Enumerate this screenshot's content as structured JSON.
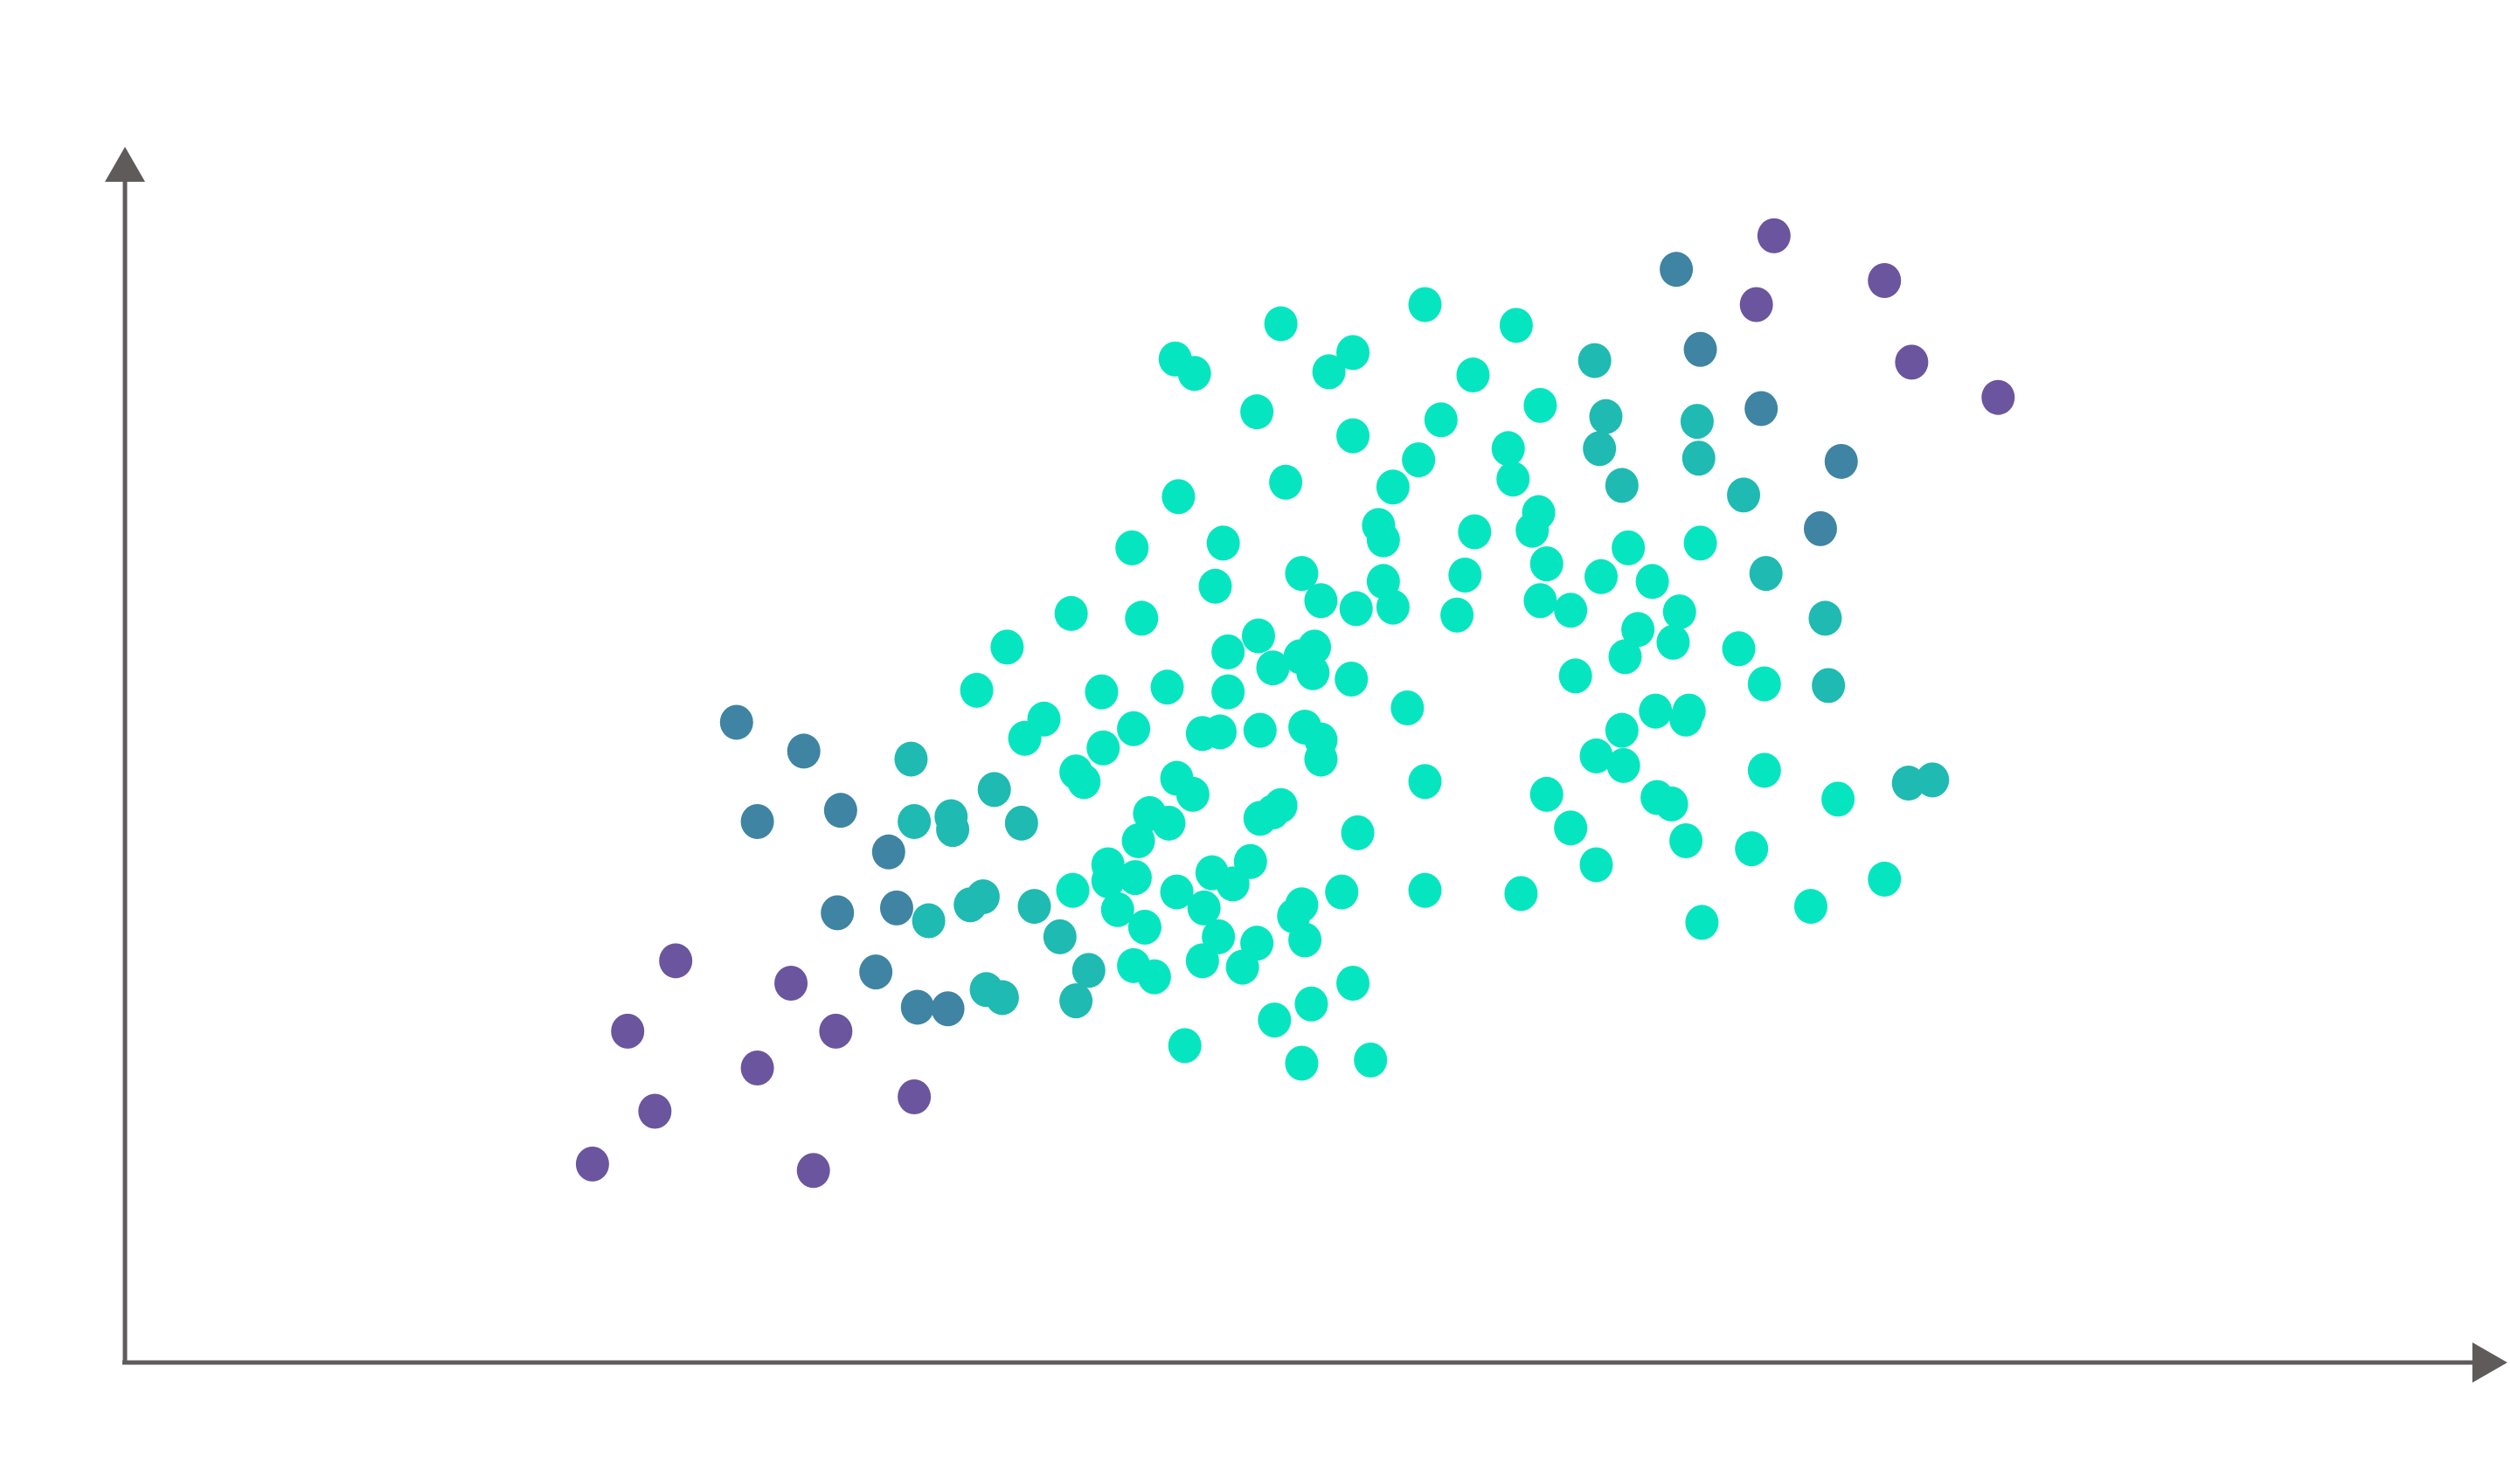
{
  "chart_data": {
    "type": "scatter",
    "xlim": [
      0,
      1487
    ],
    "ylim": [
      0,
      759
    ],
    "series": [
      {
        "color": "#6a559e",
        "x": [
          292,
          314,
          331,
          344,
          395,
          416,
          430,
          444,
          493,
          1030,
          1099,
          1116,
          1170,
          1019
        ],
        "y": [
          124,
          207,
          157,
          251,
          184,
          237,
          120,
          207,
          166,
          704,
          676,
          625,
          603,
          661
        ]
      },
      {
        "color": "#3f84a2",
        "x": [
          382,
          424,
          395,
          447,
          445,
          469,
          969,
          1022,
          1072,
          1059,
          495,
          514,
          482,
          477,
          984
        ],
        "y": [
          400,
          382,
          338,
          345,
          281,
          244,
          683,
          596,
          563,
          521,
          222,
          221,
          284,
          319,
          633
        ]
      },
      {
        "color": "#1fbab2",
        "x": [
          491,
          493,
          516,
          517,
          502,
          528,
          536,
          538,
          548,
          568,
          584,
          594,
          982,
          983,
          1011,
          1025,
          1062,
          1064,
          1114,
          1129,
          918,
          925,
          935,
          921,
          560,
          602,
          543
        ],
        "y": [
          377,
          338,
          341,
          333,
          276,
          286,
          291,
          233,
          228,
          285,
          266,
          226,
          588,
          565,
          542,
          493,
          465,
          423,
          362,
          364,
          626,
          591,
          548,
          571,
          337,
          245,
          358
        ]
      },
      {
        "color": "#05e6c0",
        "x": [
          656,
          668,
          722,
          752,
          767,
          812,
          869,
          842,
          884,
          822,
          808,
          767,
          707,
          725,
          658,
          629,
          686,
          681,
          591,
          635,
          551,
          532,
          562,
          574,
          610,
          611,
          630,
          651,
          689,
          689,
          673,
          684,
          709,
          708,
          717,
          734,
          743,
          742,
          766,
          735,
          747,
          769,
          792,
          786,
          783,
          786,
          792,
          864,
          867,
          843,
          837,
          832,
          883,
          879,
          888,
          884,
          903,
          922,
          939,
          954,
          971,
          984,
          945,
          937,
          967,
          1008,
          1024,
          906,
          956,
          935,
          977,
          975,
          801,
          737,
          747,
          747,
          594,
          599,
          657,
          667,
          640,
          652,
          633,
          709,
          722,
          717,
          770,
          812,
          888,
          919,
          936,
          957,
          966,
          903,
          919,
          975,
          1016,
          1024,
          1070,
          1099,
          1053,
          985,
          872,
          812,
          760,
          735,
          730,
          737,
          707,
          698,
          683,
          673,
          643,
          630,
          637,
          620,
          614,
          614,
          631,
          592,
          657,
          674,
          679,
          692,
          703,
          767,
          741,
          718,
          662,
          735,
          778
        ],
        "y": [
          627,
          618,
          649,
          619,
          631,
          661,
          648,
          617,
          598,
          589,
          564,
          579,
          594,
          550,
          541,
          509,
          512,
          485,
          468,
          465,
          447,
          420,
          390,
          402,
          419,
          384,
          396,
          422,
          444,
          419,
          393,
          394,
          395,
          454,
          434,
          441,
          447,
          431,
          427,
          493,
          476,
          471,
          472,
          488,
          523,
          514,
          547,
          571,
          552,
          519,
          492,
          467,
          531,
          520,
          499,
          476,
          470,
          491,
          509,
          488,
          469,
          512,
          458,
          441,
          450,
          446,
          424,
          429,
          407,
          395,
          407,
          402,
          409,
          397,
          389,
          377,
          369,
          363,
          365,
          355,
          343,
          337,
          326,
          340,
          348,
          344,
          331,
          363,
          355,
          379,
          373,
          353,
          349,
          334,
          311,
          326,
          321,
          370,
          352,
          302,
          285,
          275,
          293,
          295,
          294,
          286,
          279,
          264,
          262,
          247,
          266,
          251,
          241,
          248,
          272,
          283,
          301,
          311,
          303,
          295,
          294,
          284,
          306,
          299,
          313,
          237,
          224,
          214,
          198,
          187,
          189
        ]
      }
    ]
  }
}
